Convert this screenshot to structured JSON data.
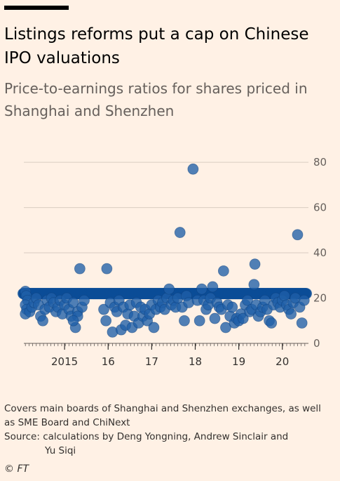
{
  "header": {
    "title": "Listings reforms put a cap on Chinese IPO valuations",
    "subtitle": "Price-to-earnings ratios for shares priced in Shanghai and Shenzhen"
  },
  "footer": {
    "note": "Covers main boards of Shanghai and Shenzhen exchanges, as well as SME Board and ChiNext",
    "source_line1": "Source: calculations by Deng Yongning, Andrew Sinclair and",
    "source_line2": "Yu Siqi",
    "copyright": "© FT"
  },
  "colors": {
    "background": "#FFF1E5",
    "dot": "#1F5FA8",
    "grid": "#D9CCC1"
  },
  "chart_data": {
    "type": "scatter",
    "title": "Listings reforms put a cap on Chinese IPO valuations",
    "subtitle": "Price-to-earnings ratios for shares priced in Shanghai and Shenzhen",
    "xlabel": "",
    "ylabel": "",
    "x_tick_labels": [
      "2015",
      "16",
      "17",
      "18",
      "19",
      "20"
    ],
    "x_tick_values": [
      2015,
      2016,
      2017,
      2018,
      2019,
      2020
    ],
    "y_ticks": [
      0,
      20,
      40,
      60,
      80
    ],
    "xlim": [
      2014.0,
      2020.6
    ],
    "ylim": [
      0,
      85
    ],
    "grid": true,
    "y_axis_position": "right",
    "band": {
      "x_start": 2014.05,
      "x_end": 2020.55,
      "y_low": 21,
      "y_high": 23
    },
    "points": [
      [
        2014.1,
        23
      ],
      [
        2014.12,
        21
      ],
      [
        2014.15,
        19
      ],
      [
        2014.1,
        17
      ],
      [
        2014.13,
        15
      ],
      [
        2014.1,
        13
      ],
      [
        2014.2,
        14
      ],
      [
        2014.25,
        16
      ],
      [
        2014.3,
        18
      ],
      [
        2014.35,
        20
      ],
      [
        2014.4,
        17
      ],
      [
        2014.45,
        12
      ],
      [
        2014.5,
        10
      ],
      [
        2014.55,
        15
      ],
      [
        2014.6,
        19
      ],
      [
        2014.65,
        16
      ],
      [
        2014.7,
        20
      ],
      [
        2014.75,
        18
      ],
      [
        2014.8,
        14
      ],
      [
        2014.85,
        16
      ],
      [
        2014.9,
        19
      ],
      [
        2014.95,
        13
      ],
      [
        2015.0,
        17
      ],
      [
        2015.05,
        20
      ],
      [
        2015.1,
        15
      ],
      [
        2015.15,
        12
      ],
      [
        2015.2,
        18
      ],
      [
        2015.25,
        7
      ],
      [
        2015.3,
        14
      ],
      [
        2015.35,
        33
      ],
      [
        2015.4,
        16
      ],
      [
        2015.45,
        19
      ],
      [
        2015.3,
        12
      ],
      [
        2015.2,
        10
      ],
      [
        2015.9,
        15
      ],
      [
        2015.95,
        10
      ],
      [
        2015.97,
        33
      ],
      [
        2016.05,
        18
      ],
      [
        2016.1,
        5
      ],
      [
        2016.15,
        16
      ],
      [
        2016.2,
        14
      ],
      [
        2016.25,
        19
      ],
      [
        2016.3,
        6
      ],
      [
        2016.35,
        16
      ],
      [
        2016.4,
        8
      ],
      [
        2016.45,
        13
      ],
      [
        2016.5,
        17
      ],
      [
        2016.55,
        7
      ],
      [
        2016.6,
        12
      ],
      [
        2016.65,
        18
      ],
      [
        2016.7,
        9
      ],
      [
        2016.75,
        16
      ],
      [
        2016.8,
        12
      ],
      [
        2016.85,
        15
      ],
      [
        2016.9,
        10
      ],
      [
        2016.95,
        13
      ],
      [
        2017.0,
        17
      ],
      [
        2017.05,
        7
      ],
      [
        2017.1,
        15
      ],
      [
        2017.15,
        19
      ],
      [
        2017.2,
        16
      ],
      [
        2017.25,
        18
      ],
      [
        2017.3,
        15
      ],
      [
        2017.35,
        20
      ],
      [
        2017.4,
        24
      ],
      [
        2017.45,
        17
      ],
      [
        2017.5,
        19
      ],
      [
        2017.55,
        16
      ],
      [
        2017.6,
        20
      ],
      [
        2017.65,
        49
      ],
      [
        2017.7,
        16
      ],
      [
        2017.75,
        10
      ],
      [
        2017.8,
        21
      ],
      [
        2017.85,
        18
      ],
      [
        2017.95,
        77
      ],
      [
        2018.05,
        19
      ],
      [
        2018.1,
        10
      ],
      [
        2018.15,
        24
      ],
      [
        2018.2,
        19
      ],
      [
        2018.25,
        15
      ],
      [
        2018.3,
        17
      ],
      [
        2018.35,
        20
      ],
      [
        2018.4,
        25
      ],
      [
        2018.45,
        11
      ],
      [
        2018.5,
        18
      ],
      [
        2018.55,
        16
      ],
      [
        2018.6,
        15
      ],
      [
        2018.65,
        32
      ],
      [
        2018.7,
        7
      ],
      [
        2018.75,
        17
      ],
      [
        2018.8,
        12
      ],
      [
        2018.85,
        16
      ],
      [
        2018.9,
        9
      ],
      [
        2018.95,
        11
      ],
      [
        2019.0,
        10
      ],
      [
        2019.05,
        13
      ],
      [
        2019.1,
        11
      ],
      [
        2019.15,
        17
      ],
      [
        2019.2,
        19
      ],
      [
        2019.25,
        14
      ],
      [
        2019.3,
        15
      ],
      [
        2019.35,
        26
      ],
      [
        2019.37,
        35
      ],
      [
        2019.4,
        17
      ],
      [
        2019.45,
        12
      ],
      [
        2019.5,
        14
      ],
      [
        2019.55,
        16
      ],
      [
        2019.6,
        19
      ],
      [
        2019.65,
        15
      ],
      [
        2019.7,
        10
      ],
      [
        2019.75,
        9
      ],
      [
        2019.8,
        17
      ],
      [
        2019.85,
        20
      ],
      [
        2019.9,
        18
      ],
      [
        2019.95,
        16
      ],
      [
        2020.0,
        19
      ],
      [
        2020.05,
        21
      ],
      [
        2020.1,
        17
      ],
      [
        2020.15,
        15
      ],
      [
        2020.2,
        13
      ],
      [
        2020.25,
        18
      ],
      [
        2020.3,
        20
      ],
      [
        2020.35,
        48
      ],
      [
        2020.4,
        16
      ],
      [
        2020.45,
        9
      ],
      [
        2020.5,
        19
      ]
    ]
  }
}
